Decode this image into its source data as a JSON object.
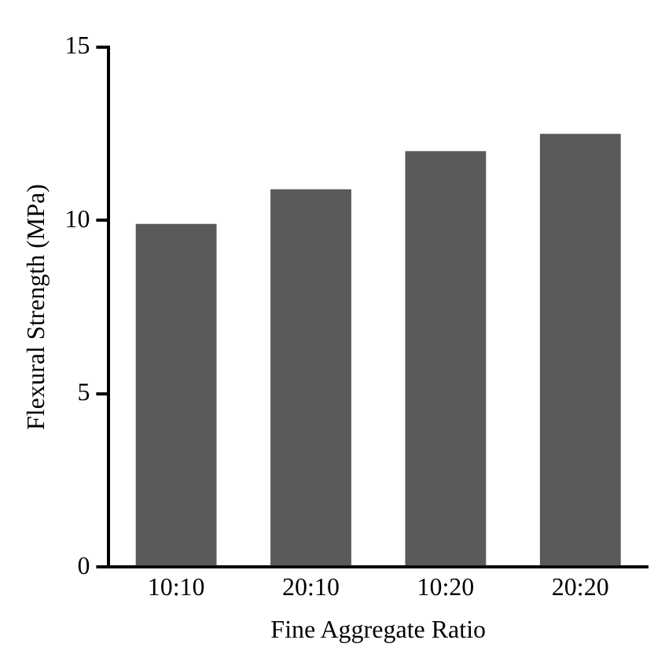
{
  "chart_data": {
    "type": "bar",
    "xlabel": "Fine Aggregate Ratio",
    "ylabel": "Flexural Strength (MPa)",
    "categories": [
      "10:10",
      "20:10",
      "10:20",
      "20:20"
    ],
    "values": [
      9.9,
      10.9,
      12.0,
      12.5
    ],
    "color": "#5a5a5a",
    "ylim": [
      0,
      15
    ],
    "yticks": [
      0,
      5,
      10,
      15
    ],
    "grid": false,
    "legend": false
  }
}
